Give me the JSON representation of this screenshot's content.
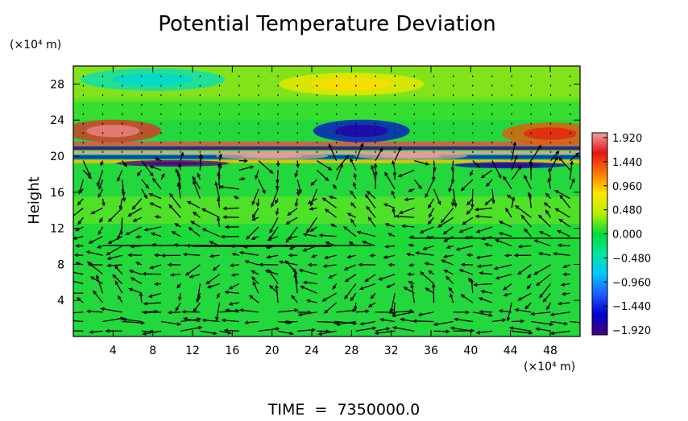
{
  "chart_data": {
    "type": "heatmap",
    "title": "Potential Temperature Deviation",
    "xlabel": "",
    "ylabel": "Height",
    "x_unit": "(×10⁴ m)",
    "y_unit": "(×10⁴ m)",
    "x_ticks": [
      "4",
      "8",
      "12",
      "16",
      "20",
      "24",
      "28",
      "32",
      "36",
      "40",
      "44",
      "48"
    ],
    "x_tick_values": [
      4,
      8,
      12,
      16,
      20,
      24,
      28,
      32,
      36,
      40,
      44,
      48
    ],
    "y_ticks": [
      "4",
      "8",
      "12",
      "16",
      "20",
      "24",
      "28"
    ],
    "y_tick_values": [
      4,
      8,
      12,
      16,
      20,
      24,
      28
    ],
    "xlim": [
      0,
      51
    ],
    "ylim": [
      0,
      30
    ],
    "colorbar": {
      "labels": [
        "1.920",
        "1.440",
        "0.960",
        "0.480",
        "0.000",
        "−0.480",
        "−0.960",
        "−1.440",
        "−1.920"
      ],
      "values": [
        1.92,
        1.44,
        0.96,
        0.48,
        0.0,
        -0.48,
        -0.96,
        -1.44,
        -1.92
      ],
      "range": [
        -1.92,
        1.92
      ],
      "colors": [
        "#4b0082",
        "#0000cd",
        "#1e5aff",
        "#00c8ff",
        "#00e6a0",
        "#00dc3c",
        "#b4f000",
        "#ffe600",
        "#ff7800",
        "#e61414",
        "#f0a0a0"
      ]
    },
    "field_features": [
      {
        "x": 4,
        "y": 22.8,
        "value": 1.6
      },
      {
        "x": 48,
        "y": 22.5,
        "value": 1.3
      },
      {
        "x": 29,
        "y": 22.8,
        "value": -1.5
      },
      {
        "x": 20,
        "y": 20.0,
        "value": 1.9
      },
      {
        "x": 34,
        "y": 20.0,
        "value": 1.9
      },
      {
        "x": 10,
        "y": 19.2,
        "value": -1.9
      },
      {
        "x": 44,
        "y": 19.0,
        "value": -1.6
      },
      {
        "x": 8,
        "y": 28.5,
        "value": -0.5
      },
      {
        "x": 28,
        "y": 28.0,
        "value": 0.7
      }
    ],
    "annotation": "TIME  =  7350000.0"
  },
  "colors": {
    "background_field": "#22d83c",
    "axis": "#000000",
    "vector": "#000000"
  }
}
